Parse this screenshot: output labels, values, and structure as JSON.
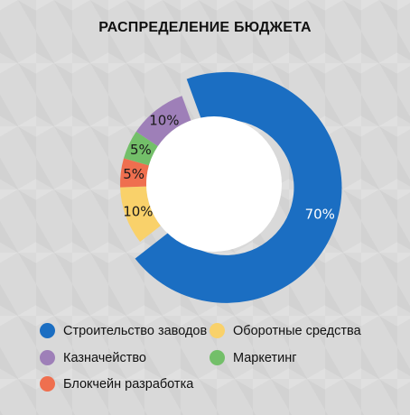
{
  "chart_data": {
    "type": "pie",
    "title": "РАСПРЕДЕЛЕНИЕ БЮДЖЕТА",
    "series": [
      {
        "name": "Строительство заводов",
        "value": 70,
        "label": "70%",
        "color": "#1b6ec2"
      },
      {
        "name": "Оборотные средства",
        "value": 10,
        "label": "10%",
        "color": "#f9d16a"
      },
      {
        "name": "Блокчейн разработка",
        "value": 5,
        "label": "5%",
        "color": "#ef6f4f"
      },
      {
        "name": "Маркетинг",
        "value": 5,
        "label": "5%",
        "color": "#73bf69"
      },
      {
        "name": "Казначейство",
        "value": 10,
        "label": "10%",
        "color": "#9e7fb8"
      }
    ],
    "legend_order": [
      "Строительство заводов",
      "Оборотные средства",
      "Казначейство",
      "Маркетинг",
      "Блокчейн разработка"
    ],
    "legend_placement": "bottom"
  }
}
